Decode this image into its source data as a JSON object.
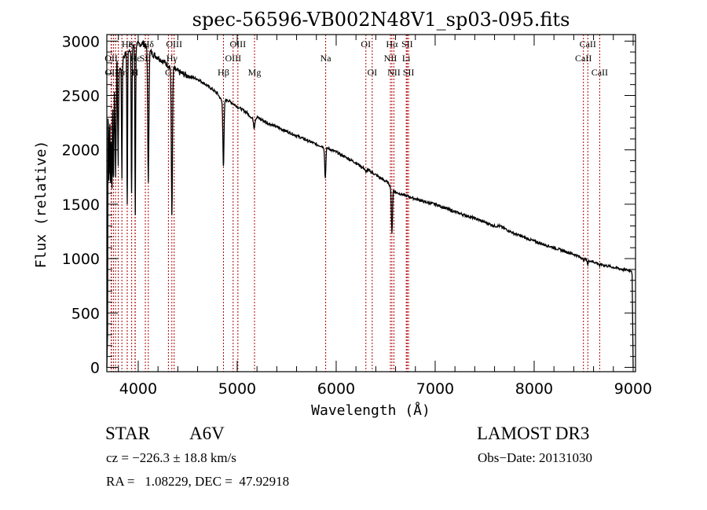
{
  "chart_data": {
    "type": "line",
    "title": "spec-56596-VB002N48V1_sp03-095.fits",
    "xlabel": "Wavelength (Å)",
    "ylabel": "Flux (relative)",
    "xlim": [
      3683,
      9024
    ],
    "ylim": [
      -40,
      3060
    ],
    "grid": false,
    "x_ticks": [
      4000,
      5000,
      6000,
      7000,
      8000,
      9000
    ],
    "x_tick_labels": [
      "4000",
      "5000",
      "6000",
      "7000",
      "8000",
      "9000"
    ],
    "x_minor_step": 200,
    "y_ticks": [
      0,
      500,
      1000,
      1500,
      2000,
      2500,
      3000
    ],
    "y_tick_labels": [
      "0",
      "500",
      "1000",
      "1500",
      "2000",
      "2500",
      "3000"
    ],
    "y_minor_step": 100,
    "series": [
      {
        "name": "spectrum",
        "color": "#000000",
        "continuum": [
          [
            3700,
            2300
          ],
          [
            3720,
            2350
          ],
          [
            3760,
            2500
          ],
          [
            3800,
            2700
          ],
          [
            3850,
            2850
          ],
          [
            3900,
            2920
          ],
          [
            3950,
            2950
          ],
          [
            4000,
            2970
          ],
          [
            4050,
            2980
          ],
          [
            4100,
            2920
          ],
          [
            4150,
            2880
          ],
          [
            4200,
            2850
          ],
          [
            4300,
            2780
          ],
          [
            4400,
            2720
          ],
          [
            4500,
            2680
          ],
          [
            4600,
            2650
          ],
          [
            4700,
            2590
          ],
          [
            4800,
            2520
          ],
          [
            4850,
            2440
          ],
          [
            4900,
            2460
          ],
          [
            5000,
            2400
          ],
          [
            5100,
            2340
          ],
          [
            5170,
            2270
          ],
          [
            5200,
            2300
          ],
          [
            5300,
            2250
          ],
          [
            5400,
            2210
          ],
          [
            5500,
            2170
          ],
          [
            5600,
            2130
          ],
          [
            5700,
            2090
          ],
          [
            5800,
            2050
          ],
          [
            5900,
            2020
          ],
          [
            6000,
            1980
          ],
          [
            6100,
            1930
          ],
          [
            6200,
            1880
          ],
          [
            6280,
            1830
          ],
          [
            6350,
            1800
          ],
          [
            6450,
            1740
          ],
          [
            6520,
            1700
          ],
          [
            6600,
            1610
          ],
          [
            6700,
            1580
          ],
          [
            6800,
            1550
          ],
          [
            6900,
            1520
          ],
          [
            7000,
            1500
          ],
          [
            7200,
            1430
          ],
          [
            7400,
            1370
          ],
          [
            7600,
            1300
          ],
          [
            7650,
            1300
          ],
          [
            7800,
            1230
          ],
          [
            8000,
            1160
          ],
          [
            8200,
            1100
          ],
          [
            8400,
            1040
          ],
          [
            8500,
            1000
          ],
          [
            8600,
            970
          ],
          [
            8700,
            940
          ],
          [
            8800,
            920
          ],
          [
            8900,
            900
          ],
          [
            8985,
            890
          ]
        ],
        "absorption_lines": [
          [
            3705,
            1800
          ],
          [
            3722,
            1700
          ],
          [
            3734,
            1700
          ],
          [
            3750,
            1750
          ],
          [
            3771,
            1750
          ],
          [
            3798,
            1850
          ],
          [
            3835,
            1750
          ],
          [
            3889,
            1500
          ],
          [
            3933,
            1600
          ],
          [
            3970,
            1400
          ],
          [
            4102,
            1700
          ],
          [
            4340,
            1400
          ],
          [
            4861,
            1850
          ],
          [
            5172,
            2200
          ],
          [
            5890,
            1740
          ],
          [
            6300,
            1790
          ],
          [
            6563,
            1230
          ],
          [
            8498,
            980
          ],
          [
            8542,
            940
          ],
          [
            8662,
            930
          ]
        ],
        "low_end_drop": [
          [
            3683,
            0
          ],
          [
            3690,
            300
          ]
        ],
        "high_end_drop": [
          [
            8990,
            850
          ],
          [
            9000,
            0
          ]
        ]
      }
    ],
    "emission_line_markers": {
      "color": "#b00000",
      "style": "dotted",
      "lines": [
        {
          "label": "He",
          "wavelength": 3889,
          "row": 0
        },
        {
          "label": "Hδ",
          "wavelength": 4102,
          "row": 0
        },
        {
          "label": "K",
          "wavelength": 3934,
          "row": 0
        },
        {
          "label": "OIII",
          "wavelength": 4363,
          "row": 0
        },
        {
          "label": "OIII",
          "wavelength": 5007,
          "row": 0
        },
        {
          "label": "OI",
          "wavelength": 6300,
          "row": 0
        },
        {
          "label": "Hα",
          "wavelength": 6563,
          "row": 0
        },
        {
          "label": "SII",
          "wavelength": 6717,
          "row": 0
        },
        {
          "label": "CaII",
          "wavelength": 8542,
          "row": 0
        },
        {
          "label": "OII",
          "wavelength": 3727,
          "row": 1
        },
        {
          "label": "Hε",
          "wavelength": 3970,
          "row": 1
        },
        {
          "label": "SII",
          "wavelength": 4072,
          "row": 1
        },
        {
          "label": "Hγ",
          "wavelength": 4340,
          "row": 1
        },
        {
          "label": "OIII",
          "wavelength": 4959,
          "row": 1
        },
        {
          "label": "NII",
          "wavelength": 6548,
          "row": 1
        },
        {
          "label": "Li",
          "wavelength": 6708,
          "row": 1
        },
        {
          "label": "CaII",
          "wavelength": 8498,
          "row": 1
        },
        {
          "label": "OII",
          "wavelength": 3729,
          "row": 2
        },
        {
          "label": "Hη",
          "wavelength": 3835,
          "row": 2
        },
        {
          "label": "H",
          "wavelength": 3968,
          "row": 2
        },
        {
          "label": "G",
          "wavelength": 4305,
          "row": 2
        },
        {
          "label": "Hβ",
          "wavelength": 4861,
          "row": 2
        },
        {
          "label": "Mg",
          "wavelength": 5175,
          "row": 2
        },
        {
          "label": "Na",
          "wavelength": 5894,
          "row": 1
        },
        {
          "label": "OI",
          "wavelength": 6364,
          "row": 2
        },
        {
          "label": "NII",
          "wavelength": 6583,
          "row": 2
        },
        {
          "label": "SII",
          "wavelength": 6731,
          "row": 2
        },
        {
          "label": "CaII",
          "wavelength": 8662,
          "row": 2
        }
      ],
      "extra_marker_wavelengths": [
        3750,
        3771,
        3798,
        3889
      ]
    }
  },
  "info": {
    "object_class": "STAR",
    "subclass": "A6V",
    "redshift_line": "cz = −226.3 ± 18.8 km/s",
    "coords_line": "RA =   1.08229, DEC =  47.92918",
    "survey": "LAMOST DR3",
    "obs_date_line": "Obs−Date: 20131030"
  }
}
